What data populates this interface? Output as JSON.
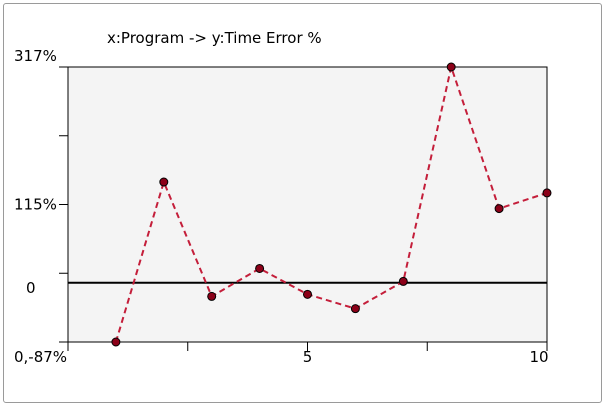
{
  "chart_data": {
    "type": "line",
    "title": "x:Program -> y:Time Error %",
    "xlabel": "",
    "ylabel": "",
    "x": [
      1,
      2,
      3,
      4,
      5,
      6,
      7,
      8,
      9,
      10
    ],
    "series": [
      {
        "values": [
          -87,
          148,
          -20,
          21,
          -17,
          -38,
          2,
          317,
          109,
          132
        ]
      }
    ],
    "xlim": [
      0,
      10
    ],
    "ylim": [
      -87,
      317
    ],
    "x_tick_labels": [
      {
        "value": 0,
        "label": "0,-87%"
      },
      {
        "value": 5,
        "label": "5"
      },
      {
        "value": 10,
        "label": "10"
      }
    ],
    "y_tick_labels": [
      {
        "value": 317,
        "label": "317%"
      },
      {
        "value": 115,
        "label": "115%"
      },
      {
        "value": 0,
        "label": "0"
      }
    ],
    "reference_line": {
      "axis": "y",
      "value": 0
    },
    "grid": false,
    "colors": {
      "series_line": "#c41e3a",
      "marker_fill": "#8b0018",
      "plot_background": "#f4f4f4",
      "axis": "#000000"
    }
  }
}
